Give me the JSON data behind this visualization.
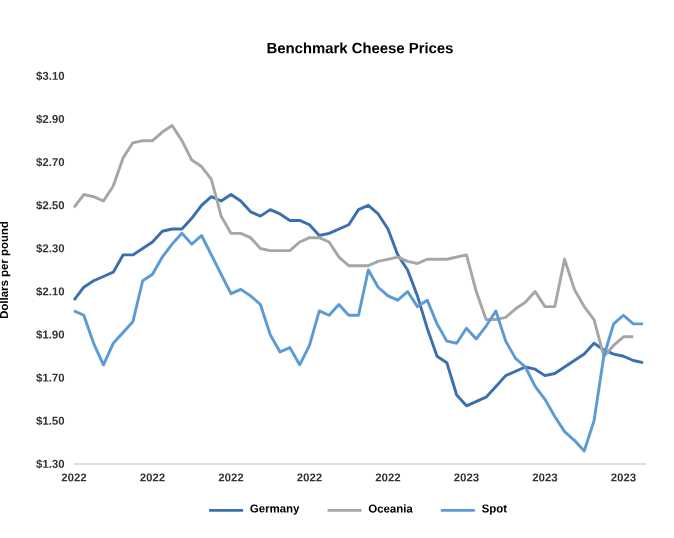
{
  "chart_data": {
    "type": "line",
    "title": "Benchmark Cheese Prices",
    "ylabel": "Dollars per pound",
    "categories": [
      "2022",
      null,
      null,
      null,
      null,
      null,
      null,
      null,
      "2022",
      null,
      null,
      null,
      null,
      null,
      null,
      null,
      "2022",
      null,
      null,
      null,
      null,
      null,
      null,
      null,
      "2022",
      null,
      null,
      null,
      null,
      null,
      null,
      null,
      "2022",
      null,
      null,
      null,
      null,
      null,
      null,
      null,
      "2023",
      null,
      null,
      null,
      null,
      null,
      null,
      null,
      "2023",
      null,
      null,
      null,
      null,
      null,
      null,
      null,
      "2023",
      null,
      null
    ],
    "series": [
      {
        "name": "Germany",
        "color": "#3a6fb0",
        "values": [
          2.06,
          2.12,
          2.15,
          2.17,
          2.19,
          2.27,
          2.27,
          2.3,
          2.33,
          2.38,
          2.39,
          2.39,
          2.44,
          2.5,
          2.54,
          2.52,
          2.55,
          2.52,
          2.47,
          2.45,
          2.48,
          2.46,
          2.43,
          2.43,
          2.41,
          2.36,
          2.37,
          2.39,
          2.41,
          2.48,
          2.5,
          2.46,
          2.39,
          2.27,
          2.2,
          2.08,
          1.93,
          1.8,
          1.77,
          1.62,
          1.57,
          1.59,
          1.61,
          1.66,
          1.71,
          1.73,
          1.75,
          1.74,
          1.71,
          1.72,
          1.75,
          1.78,
          1.81,
          1.86,
          1.83,
          1.81,
          1.8,
          1.78,
          1.77
        ]
      },
      {
        "name": "Oceania",
        "color": "#a6a6a6",
        "values": [
          2.49,
          2.55,
          2.54,
          2.52,
          2.59,
          2.72,
          2.79,
          2.8,
          2.8,
          2.84,
          2.87,
          2.8,
          2.71,
          2.68,
          2.62,
          2.45,
          2.37,
          2.37,
          2.35,
          2.3,
          2.29,
          2.29,
          2.29,
          2.33,
          2.35,
          2.35,
          2.33,
          2.26,
          2.22,
          2.22,
          2.22,
          2.24,
          2.25,
          2.26,
          2.24,
          2.23,
          2.25,
          2.25,
          2.25,
          2.26,
          2.27,
          2.1,
          1.97,
          1.97,
          1.98,
          2.02,
          2.05,
          2.1,
          2.03,
          2.03,
          2.25,
          2.11,
          2.03,
          1.97,
          1.8,
          1.85,
          1.89,
          1.89,
          null
        ]
      },
      {
        "name": "Spot",
        "color": "#5b9bd5",
        "values": [
          2.01,
          1.99,
          1.86,
          1.76,
          1.86,
          1.91,
          1.96,
          2.15,
          2.18,
          2.26,
          2.32,
          2.37,
          2.32,
          2.36,
          2.27,
          2.18,
          2.09,
          2.11,
          2.08,
          2.04,
          1.9,
          1.82,
          1.84,
          1.76,
          1.85,
          2.01,
          1.99,
          2.04,
          1.99,
          1.99,
          2.2,
          2.12,
          2.08,
          2.06,
          2.1,
          2.03,
          2.06,
          1.95,
          1.87,
          1.86,
          1.93,
          1.88,
          1.94,
          2.01,
          1.87,
          1.79,
          1.75,
          1.66,
          1.6,
          1.52,
          1.45,
          1.41,
          1.36,
          1.5,
          1.8,
          1.95,
          1.99,
          1.95,
          1.95
        ]
      }
    ],
    "ylim": [
      1.3,
      3.1
    ],
    "yticks": [
      {
        "value": 1.3,
        "label": "$1.30"
      },
      {
        "value": 1.5,
        "label": "$1.50"
      },
      {
        "value": 1.7,
        "label": "$1.70"
      },
      {
        "value": 1.9,
        "label": "$1.90"
      },
      {
        "value": 2.1,
        "label": "$2.10"
      },
      {
        "value": 2.3,
        "label": "$2.30"
      },
      {
        "value": 2.5,
        "label": "$2.50"
      },
      {
        "value": 2.7,
        "label": "$2.70"
      },
      {
        "value": 2.9,
        "label": "$2.90"
      },
      {
        "value": 3.1,
        "label": "$3.10"
      }
    ],
    "legend": "bottom",
    "line_style": "solid"
  }
}
